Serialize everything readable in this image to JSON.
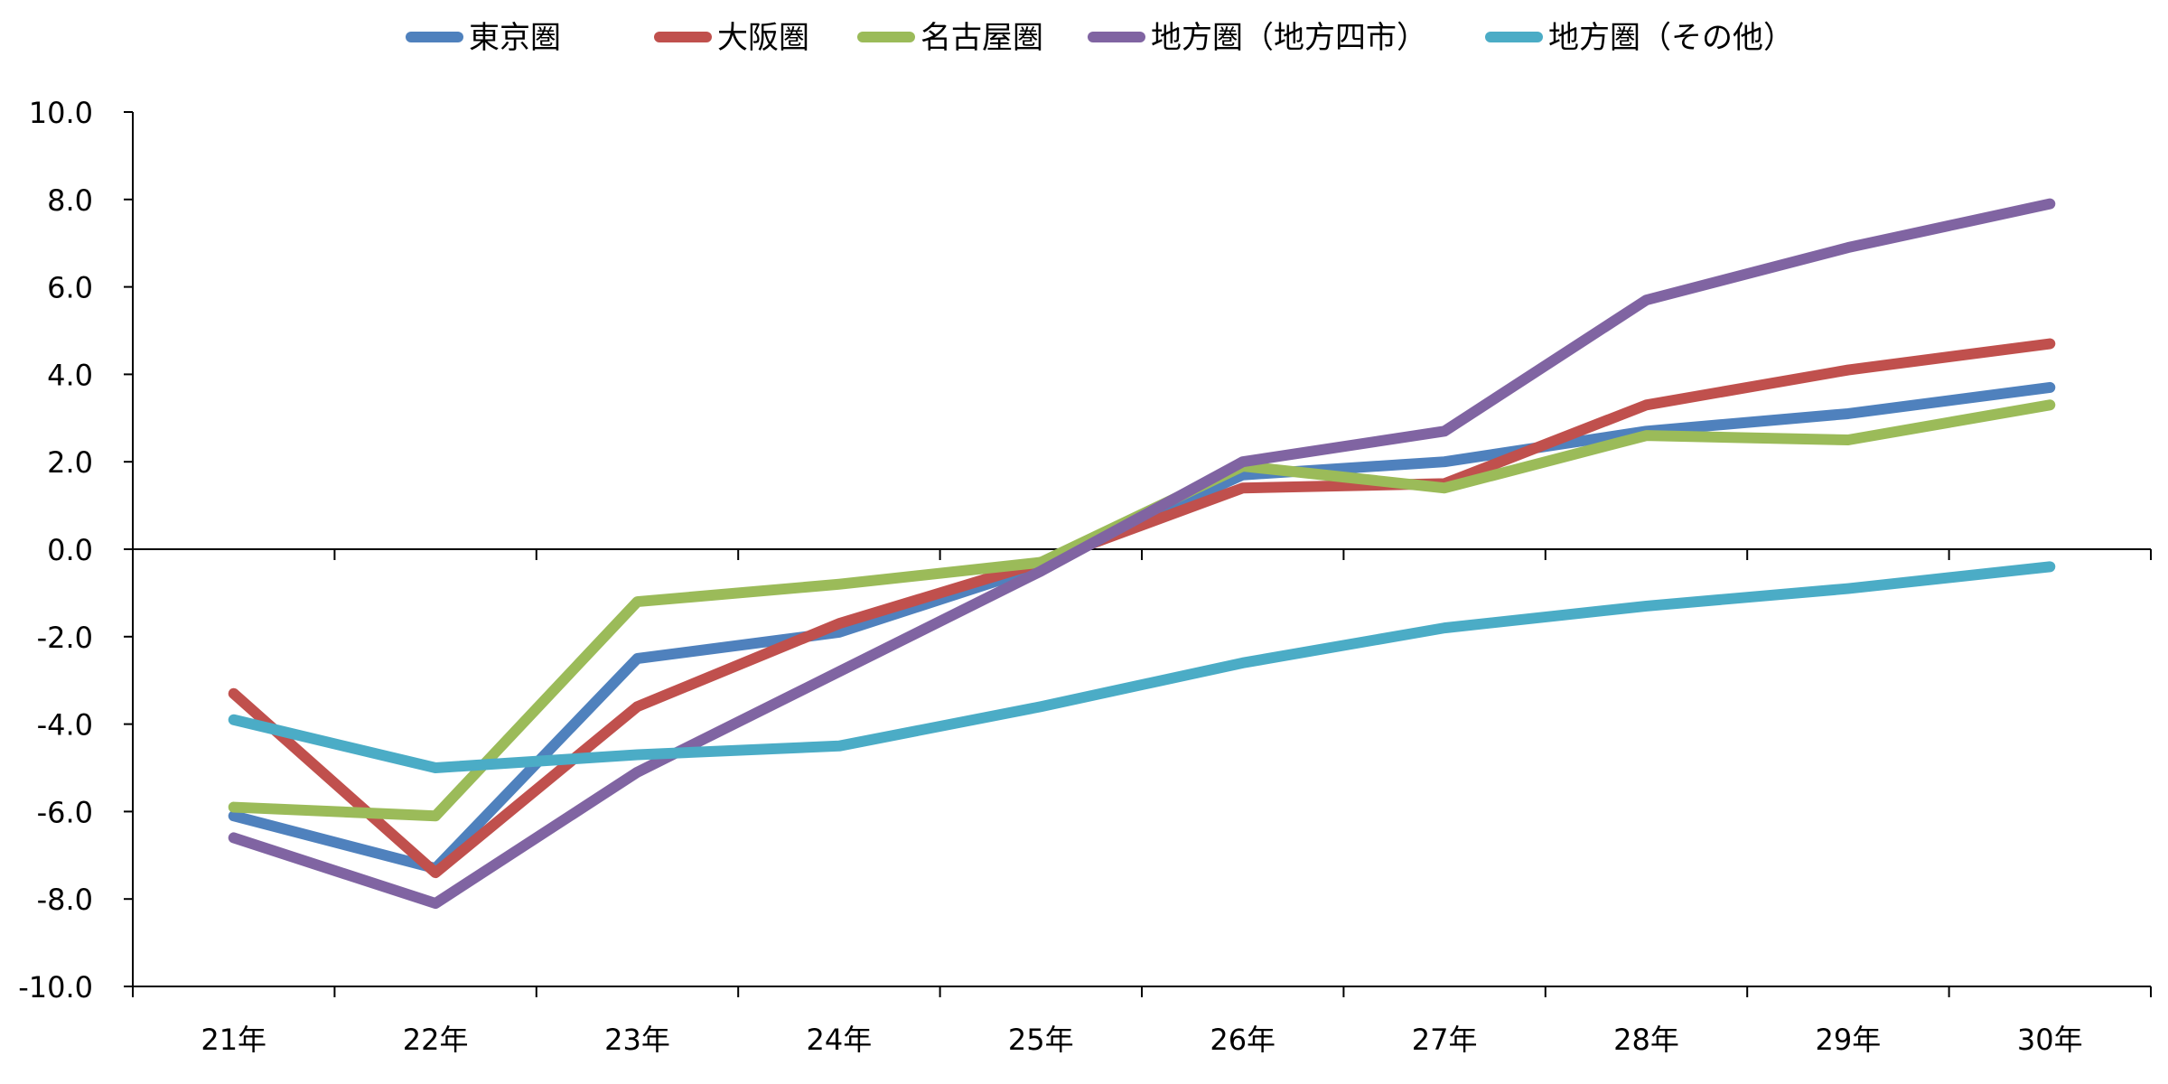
{
  "chart_data": {
    "type": "line",
    "categories": [
      "21年",
      "22年",
      "23年",
      "24年",
      "25年",
      "26年",
      "27年",
      "28年",
      "29年",
      "30年"
    ],
    "ylim": [
      -10,
      10
    ],
    "yticks": [
      "10.0",
      "8.0",
      "6.0",
      "4.0",
      "2.0",
      "0.0",
      "-2.0",
      "-4.0",
      "-6.0",
      "-8.0",
      "-10.0"
    ],
    "ytick_values": [
      10,
      8,
      6,
      4,
      2,
      0,
      -2,
      -4,
      -6,
      -8,
      -10
    ],
    "grid": false,
    "legend_position": "top",
    "series": [
      {
        "name": "東京圏",
        "color": "#4F81BD",
        "values": [
          -6.1,
          -7.3,
          -2.5,
          -1.9,
          -0.4,
          1.7,
          2.0,
          2.7,
          3.1,
          3.7
        ]
      },
      {
        "name": "大阪圏",
        "color": "#C0504D",
        "values": [
          -3.3,
          -7.4,
          -3.6,
          -1.7,
          -0.3,
          1.4,
          1.5,
          3.3,
          4.1,
          4.7
        ]
      },
      {
        "name": "名古屋圏",
        "color": "#9BBB59",
        "values": [
          -5.9,
          -6.1,
          -1.2,
          -0.8,
          -0.3,
          1.9,
          1.4,
          2.6,
          2.5,
          3.3
        ]
      },
      {
        "name": "地方圏（地方四市）",
        "color": "#8064A2",
        "values": [
          -6.6,
          -8.1,
          -5.1,
          -2.8,
          -0.5,
          2.0,
          2.7,
          5.7,
          6.9,
          7.9
        ]
      },
      {
        "name": "地方圏（その他）",
        "color": "#4BACC6",
        "values": [
          -3.9,
          -5.0,
          -4.7,
          -4.5,
          -3.6,
          -2.6,
          -1.8,
          -1.3,
          -0.9,
          -0.4
        ]
      }
    ]
  }
}
